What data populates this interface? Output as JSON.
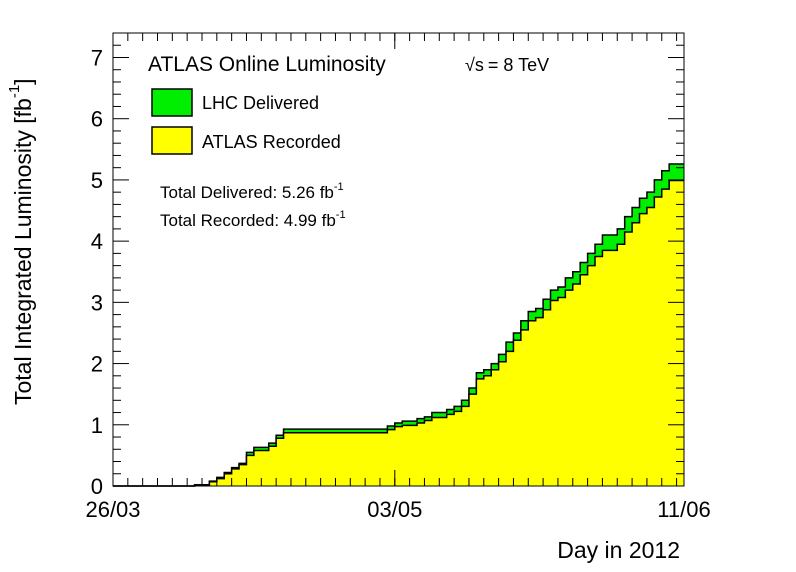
{
  "chart_data": {
    "type": "area",
    "title": "ATLAS Online Luminosity",
    "energy_label": "= 8 TeV",
    "energy_symbol": "√s",
    "xlabel": "Day in 2012",
    "ylabel": "Total Integrated Luminosity [fb",
    "ylabel_exp": "-1",
    "ylabel_close": "]",
    "xlim": [
      0,
      77
    ],
    "ylim": [
      0,
      7.4
    ],
    "x_ticks": [
      {
        "day": 0,
        "label": "26/03"
      },
      {
        "day": 38,
        "label": "03/05"
      },
      {
        "day": 77,
        "label": "11/06"
      }
    ],
    "y_ticks": [
      0,
      1,
      2,
      3,
      4,
      5,
      6,
      7
    ],
    "grid": false,
    "legend": {
      "placement": "top-left",
      "entries": [
        {
          "label": "LHC Delivered",
          "color": "#00ee00"
        },
        {
          "label": "ATLAS Recorded",
          "color": "#ffff00"
        }
      ]
    },
    "stats": {
      "delivered_text": "Total Delivered: 5.26 fb",
      "recorded_text": "Total Recorded: 4.99 fb",
      "exp": "-1"
    },
    "series": [
      {
        "name": "LHC Delivered",
        "color": "#00ee00",
        "x": [
          0,
          1,
          2,
          3,
          4,
          5,
          6,
          7,
          8,
          9,
          10,
          11,
          12,
          13,
          14,
          15,
          16,
          17,
          18,
          19,
          20,
          21,
          22,
          23,
          24,
          25,
          26,
          27,
          28,
          29,
          30,
          31,
          32,
          33,
          34,
          35,
          36,
          37,
          38,
          39,
          40,
          41,
          42,
          43,
          44,
          45,
          46,
          47,
          48,
          49,
          50,
          51,
          52,
          53,
          54,
          55,
          56,
          57,
          58,
          59,
          60,
          61,
          62,
          63,
          64,
          65,
          66,
          67,
          68,
          69,
          70,
          71,
          72,
          73,
          74,
          75,
          76
        ],
        "values": [
          0.0,
          0.0,
          0.0,
          0.0,
          0.0,
          0.0,
          0.0,
          0.0,
          0.0,
          0.0,
          0.0,
          0.02,
          0.02,
          0.08,
          0.14,
          0.22,
          0.3,
          0.37,
          0.55,
          0.63,
          0.63,
          0.7,
          0.83,
          0.93,
          0.93,
          0.93,
          0.93,
          0.93,
          0.93,
          0.93,
          0.93,
          0.93,
          0.93,
          0.93,
          0.93,
          0.93,
          0.93,
          0.98,
          1.03,
          1.06,
          1.06,
          1.1,
          1.13,
          1.2,
          1.2,
          1.25,
          1.3,
          1.4,
          1.6,
          1.85,
          1.9,
          2.0,
          2.15,
          2.35,
          2.5,
          2.7,
          2.85,
          2.9,
          3.05,
          3.2,
          3.25,
          3.4,
          3.5,
          3.65,
          3.8,
          3.95,
          4.1,
          4.1,
          4.2,
          4.4,
          4.55,
          4.7,
          4.8,
          5.0,
          5.15,
          5.26,
          5.26
        ]
      },
      {
        "name": "ATLAS Recorded",
        "color": "#ffff00",
        "x": [
          0,
          1,
          2,
          3,
          4,
          5,
          6,
          7,
          8,
          9,
          10,
          11,
          12,
          13,
          14,
          15,
          16,
          17,
          18,
          19,
          20,
          21,
          22,
          23,
          24,
          25,
          26,
          27,
          28,
          29,
          30,
          31,
          32,
          33,
          34,
          35,
          36,
          37,
          38,
          39,
          40,
          41,
          42,
          43,
          44,
          45,
          46,
          47,
          48,
          49,
          50,
          51,
          52,
          53,
          54,
          55,
          56,
          57,
          58,
          59,
          60,
          61,
          62,
          63,
          64,
          65,
          66,
          67,
          68,
          69,
          70,
          71,
          72,
          73,
          74,
          75,
          76
        ],
        "values": [
          0.0,
          0.0,
          0.0,
          0.0,
          0.0,
          0.0,
          0.0,
          0.0,
          0.0,
          0.0,
          0.0,
          0.01,
          0.02,
          0.07,
          0.12,
          0.2,
          0.28,
          0.35,
          0.5,
          0.58,
          0.58,
          0.65,
          0.78,
          0.87,
          0.87,
          0.87,
          0.87,
          0.87,
          0.87,
          0.87,
          0.87,
          0.87,
          0.87,
          0.87,
          0.87,
          0.87,
          0.87,
          0.92,
          0.97,
          0.99,
          0.99,
          1.03,
          1.07,
          1.12,
          1.12,
          1.17,
          1.22,
          1.3,
          1.5,
          1.75,
          1.8,
          1.9,
          2.03,
          2.2,
          2.38,
          2.55,
          2.7,
          2.75,
          2.88,
          3.03,
          3.08,
          3.2,
          3.3,
          3.45,
          3.6,
          3.75,
          3.85,
          3.85,
          3.95,
          4.15,
          4.3,
          4.45,
          4.55,
          4.72,
          4.85,
          4.99,
          4.99
        ]
      }
    ]
  }
}
